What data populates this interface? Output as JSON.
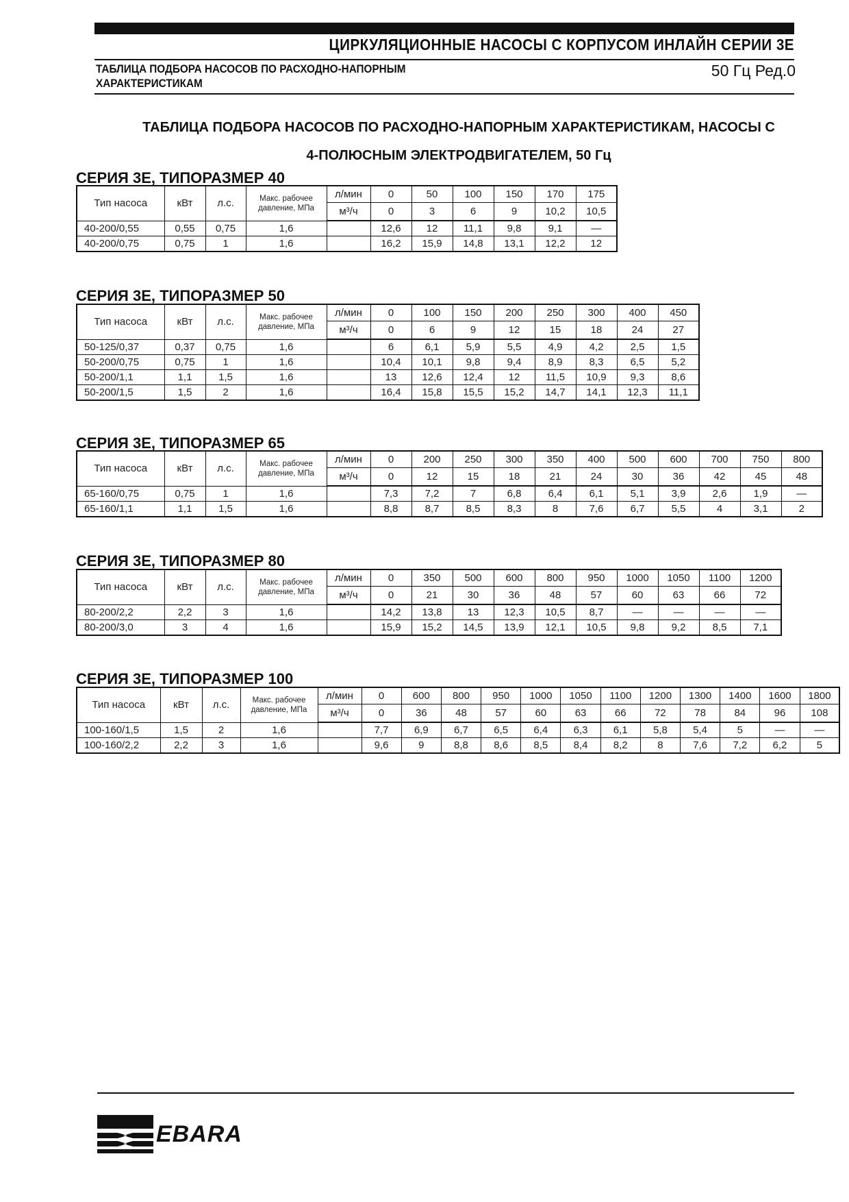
{
  "header": {
    "title": "ЦИРКУЛЯЦИОННЫЕ НАСОСЫ С КОРПУСОМ ИНЛАЙН СЕРИИ 3Е",
    "subtitle": "ТАБЛИЦА ПОДБОРА НАСОСОВ ПО РАСХОДНО-НАПОРНЫМ ХАРАКТЕРИСТИКАМ",
    "frequency_rev": "50 Гц  Ред.0"
  },
  "main_title_line1": "ТАБЛИЦА ПОДБОРА НАСОСОВ ПО РАСХОДНО-НАПОРНЫМ ХАРАКТЕРИСТИКАМ, НАСОСЫ С",
  "main_title_line2": "4-ПОЛЮСНЫМ ЭЛЕКТРОДВИГАТЕЛЕМ, 50 Гц",
  "columns": {
    "type": "Тип насоса",
    "kw": "кВт",
    "hp": "л.с.",
    "pressure": "Макс. рабочее давление, МПа",
    "lmin": "л/мин",
    "m3h": "м³/ч"
  },
  "tables": [
    {
      "heading": "СЕРИЯ 3Е, ТИПОРАЗМЕР 40",
      "lmin": [
        "0",
        "50",
        "100",
        "150",
        "170",
        "175"
      ],
      "m3h": [
        "0",
        "3",
        "6",
        "9",
        "10,2",
        "10,5"
      ],
      "rows": [
        {
          "type": "40-200/0,55",
          "kw": "0,55",
          "hp": "0,75",
          "pressure": "1,6",
          "heads": [
            "12,6",
            "12",
            "11,1",
            "9,8",
            "9,1",
            "—"
          ]
        },
        {
          "type": "40-200/0,75",
          "kw": "0,75",
          "hp": "1",
          "pressure": "1,6",
          "heads": [
            "16,2",
            "15,9",
            "14,8",
            "13,1",
            "12,2",
            "12"
          ]
        }
      ]
    },
    {
      "heading": "СЕРИЯ 3Е, ТИПОРАЗМЕР 50",
      "lmin": [
        "0",
        "100",
        "150",
        "200",
        "250",
        "300",
        "400",
        "450"
      ],
      "m3h": [
        "0",
        "6",
        "9",
        "12",
        "15",
        "18",
        "24",
        "27"
      ],
      "rows": [
        {
          "type": "50-125/0,37",
          "kw": "0,37",
          "hp": "0,75",
          "pressure": "1,6",
          "heads": [
            "6",
            "6,1",
            "5,9",
            "5,5",
            "4,9",
            "4,2",
            "2,5",
            "1,5"
          ]
        },
        {
          "type": "50-200/0,75",
          "kw": "0,75",
          "hp": "1",
          "pressure": "1,6",
          "heads": [
            "10,4",
            "10,1",
            "9,8",
            "9,4",
            "8,9",
            "8,3",
            "6,5",
            "5,2"
          ]
        },
        {
          "type": "50-200/1,1",
          "kw": "1,1",
          "hp": "1,5",
          "pressure": "1,6",
          "heads": [
            "13",
            "12,6",
            "12,4",
            "12",
            "11,5",
            "10,9",
            "9,3",
            "8,6"
          ]
        },
        {
          "type": "50-200/1,5",
          "kw": "1,5",
          "hp": "2",
          "pressure": "1,6",
          "heads": [
            "16,4",
            "15,8",
            "15,5",
            "15,2",
            "14,7",
            "14,1",
            "12,3",
            "11,1"
          ]
        }
      ]
    },
    {
      "heading": "СЕРИЯ 3Е, ТИПОРАЗМЕР 65",
      "lmin": [
        "0",
        "200",
        "250",
        "300",
        "350",
        "400",
        "500",
        "600",
        "700",
        "750",
        "800"
      ],
      "m3h": [
        "0",
        "12",
        "15",
        "18",
        "21",
        "24",
        "30",
        "36",
        "42",
        "45",
        "48"
      ],
      "rows": [
        {
          "type": "65-160/0,75",
          "kw": "0,75",
          "hp": "1",
          "pressure": "1,6",
          "heads": [
            "7,3",
            "7,2",
            "7",
            "6,8",
            "6,4",
            "6,1",
            "5,1",
            "3,9",
            "2,6",
            "1,9",
            "—"
          ]
        },
        {
          "type": "65-160/1,1",
          "kw": "1,1",
          "hp": "1,5",
          "pressure": "1,6",
          "heads": [
            "8,8",
            "8,7",
            "8,5",
            "8,3",
            "8",
            "7,6",
            "6,7",
            "5,5",
            "4",
            "3,1",
            "2"
          ]
        }
      ]
    },
    {
      "heading": "СЕРИЯ 3Е, ТИПОРАЗМЕР 80",
      "lmin": [
        "0",
        "350",
        "500",
        "600",
        "800",
        "950",
        "1000",
        "1050",
        "1100",
        "1200"
      ],
      "m3h": [
        "0",
        "21",
        "30",
        "36",
        "48",
        "57",
        "60",
        "63",
        "66",
        "72"
      ],
      "rows": [
        {
          "type": "80-200/2,2",
          "kw": "2,2",
          "hp": "3",
          "pressure": "1,6",
          "heads": [
            "14,2",
            "13,8",
            "13",
            "12,3",
            "10,5",
            "8,7",
            "—",
            "—",
            "—",
            "—"
          ]
        },
        {
          "type": "80-200/3,0",
          "kw": "3",
          "hp": "4",
          "pressure": "1,6",
          "heads": [
            "15,9",
            "15,2",
            "14,5",
            "13,9",
            "12,1",
            "10,5",
            "9,8",
            "9,2",
            "8,5",
            "7,1"
          ]
        }
      ]
    },
    {
      "heading": "СЕРИЯ 3Е, ТИПОРАЗМЕР 100",
      "lmin": [
        "0",
        "600",
        "800",
        "950",
        "1000",
        "1050",
        "1100",
        "1200",
        "1300",
        "1400",
        "1600",
        "1800"
      ],
      "m3h": [
        "0",
        "36",
        "48",
        "57",
        "60",
        "63",
        "66",
        "72",
        "78",
        "84",
        "96",
        "108"
      ],
      "rows": [
        {
          "type": "100-160/1,5",
          "kw": "1,5",
          "hp": "2",
          "pressure": "1,6",
          "heads": [
            "7,7",
            "6,9",
            "6,7",
            "6,5",
            "6,4",
            "6,3",
            "6,1",
            "5,8",
            "5,4",
            "5",
            "—",
            "—"
          ]
        },
        {
          "type": "100-160/2,2",
          "kw": "2,2",
          "hp": "3",
          "pressure": "1,6",
          "heads": [
            "9,6",
            "9",
            "8,8",
            "8,6",
            "8,5",
            "8,4",
            "8,2",
            "8",
            "7,6",
            "7,2",
            "6,2",
            "5"
          ]
        }
      ]
    }
  ],
  "footer": {
    "brand": "EBARA"
  }
}
